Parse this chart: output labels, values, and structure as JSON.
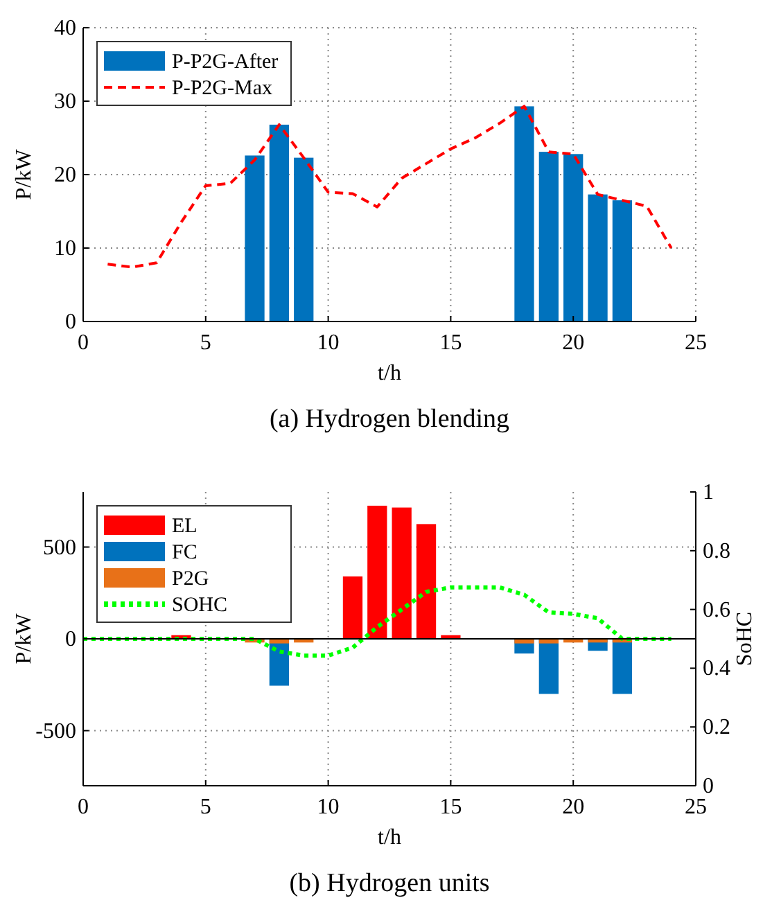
{
  "chart_data": [
    {
      "type": "bar",
      "title": "(a) Hydrogen blending",
      "xlabel": "t/h",
      "ylabel": "P/kW",
      "xlim": [
        0,
        25
      ],
      "xticks": [
        0,
        5,
        10,
        15,
        20,
        25
      ],
      "ylim": [
        0,
        40
      ],
      "yticks": [
        0,
        10,
        20,
        30,
        40
      ],
      "grid": true,
      "legend": "top left",
      "series": [
        {
          "name": "P-P2G-After",
          "type": "bar",
          "color": "#0072bd",
          "x": [
            7,
            8,
            9,
            18,
            19,
            20,
            21,
            22
          ],
          "values": [
            22.6,
            26.8,
            22.3,
            29.3,
            23.1,
            22.8,
            17.3,
            16.5
          ]
        },
        {
          "name": "P-P2G-Max",
          "type": "line",
          "color": "#ff0000",
          "line_style": "dashed",
          "x": [
            1,
            2,
            3,
            4,
            5,
            6,
            7,
            8,
            9,
            10,
            11,
            12,
            13,
            14,
            15,
            16,
            17,
            18,
            19,
            20,
            21,
            22,
            23,
            24
          ],
          "values": [
            7.8,
            7.4,
            8,
            13.5,
            18.5,
            18.8,
            22,
            26.8,
            22.3,
            17.6,
            17.4,
            15.6,
            19.5,
            21.5,
            23.5,
            25,
            27,
            29.3,
            23.1,
            22.8,
            17.3,
            16.5,
            15.7,
            10
          ]
        }
      ]
    },
    {
      "type": "bar",
      "title": "(b) Hydrogen units",
      "xlabel": "t/h",
      "ylabel": "P/kW",
      "y2label": "SoHC",
      "xlim": [
        0,
        25
      ],
      "xticks": [
        0,
        5,
        10,
        15,
        20,
        25
      ],
      "ylim": [
        -800,
        800
      ],
      "yticks": [
        -500,
        0,
        500
      ],
      "y2lim": [
        0,
        1
      ],
      "y2ticks": [
        0,
        0.2,
        0.4,
        0.6,
        0.8,
        1
      ],
      "grid": true,
      "legend": "top left",
      "series": [
        {
          "name": "EL",
          "type": "bar",
          "color": "#ff0000",
          "x": [
            4,
            11,
            12,
            13,
            14,
            15
          ],
          "values": [
            20,
            340,
            725,
            715,
            625,
            20
          ]
        },
        {
          "name": "FC",
          "type": "bar",
          "color": "#0072bd",
          "x": [
            8,
            18,
            19,
            21,
            22
          ],
          "values": [
            -255,
            -80,
            -300,
            -65,
            -300
          ]
        },
        {
          "name": "P2G",
          "type": "bar",
          "color": "#e87118",
          "x": [
            7,
            8,
            9,
            18,
            19,
            20,
            21,
            22
          ],
          "values": [
            -20,
            -25,
            -20,
            -25,
            -25,
            -20,
            -20,
            -20
          ]
        },
        {
          "name": "SOHC",
          "type": "line",
          "axis": "y2",
          "color": "#00ff00",
          "line_style": "dotted",
          "x": [
            0,
            1,
            2,
            3,
            4,
            5,
            6,
            7,
            8,
            9,
            10,
            11,
            12,
            13,
            14,
            15,
            16,
            17,
            18,
            19,
            20,
            21,
            22,
            23,
            24
          ],
          "values": [
            0.5,
            0.5,
            0.5,
            0.5,
            0.5,
            0.5,
            0.5,
            0.5,
            0.457,
            0.443,
            0.443,
            0.47,
            0.54,
            0.6,
            0.66,
            0.675,
            0.675,
            0.675,
            0.65,
            0.59,
            0.585,
            0.57,
            0.5,
            0.5,
            0.5
          ]
        }
      ]
    }
  ]
}
